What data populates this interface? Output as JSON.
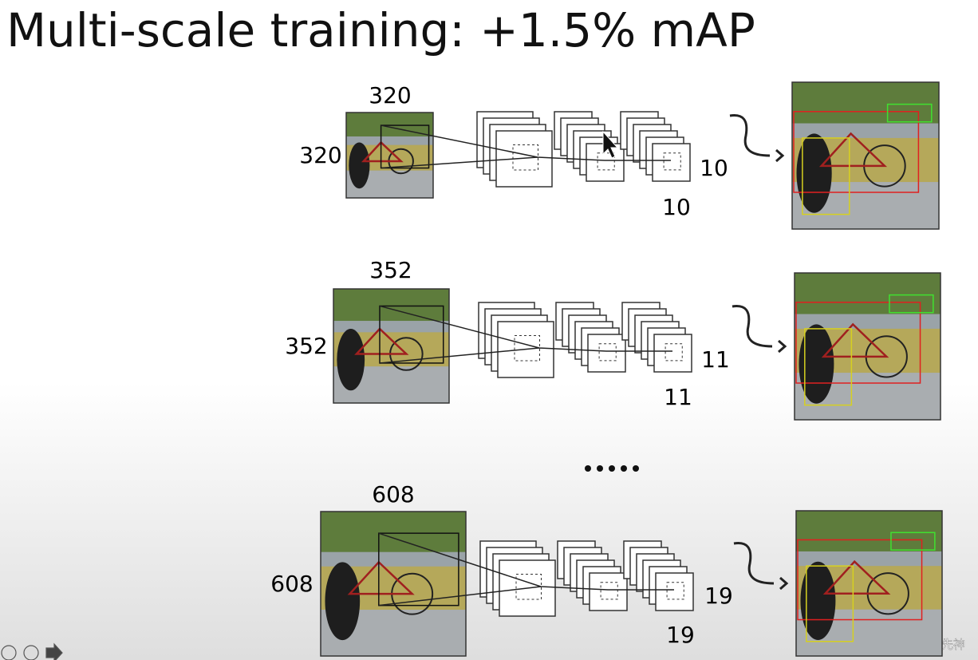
{
  "header": {
    "title": "Multi-scale training: +1.5% mAP"
  },
  "rows": [
    {
      "input_top": "320",
      "input_left": "320",
      "output_right": "10",
      "output_bottom": "10"
    },
    {
      "input_top": "352",
      "input_left": "352",
      "output_right": "11",
      "output_bottom": "11"
    },
    {
      "input_top": "608",
      "input_left": "608",
      "output_right": "19",
      "output_bottom": "19"
    }
  ],
  "watermark": "CSDN @白鲸先神"
}
